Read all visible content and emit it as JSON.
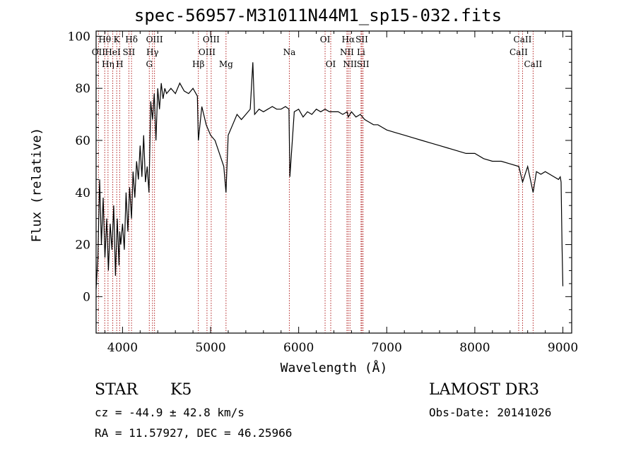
{
  "chart_data": {
    "type": "line",
    "title": "spec-56957-M31011N44M1_sp15-032.fits",
    "xlabel": "Wavelength (Å)",
    "ylabel": "Flux (relative)",
    "xlim": [
      3700,
      9100
    ],
    "ylim": [
      -14,
      102
    ],
    "xticks": [
      4000,
      5000,
      6000,
      7000,
      8000,
      9000
    ],
    "yticks": [
      0,
      20,
      40,
      60,
      80,
      100
    ],
    "spectrum": {
      "x": [
        3700,
        3720,
        3740,
        3760,
        3780,
        3800,
        3820,
        3840,
        3860,
        3880,
        3900,
        3920,
        3940,
        3960,
        3968,
        3980,
        4000,
        4020,
        4040,
        4060,
        4080,
        4102,
        4120,
        4140,
        4160,
        4180,
        4200,
        4220,
        4240,
        4260,
        4280,
        4300,
        4320,
        4340,
        4360,
        4380,
        4400,
        4420,
        4440,
        4460,
        4480,
        4500,
        4550,
        4600,
        4650,
        4700,
        4750,
        4800,
        4850,
        4861,
        4900,
        4950,
        5000,
        5050,
        5100,
        5150,
        5175,
        5200,
        5250,
        5300,
        5350,
        5400,
        5450,
        5480,
        5500,
        5550,
        5600,
        5650,
        5700,
        5750,
        5800,
        5850,
        5890,
        5900,
        5950,
        6000,
        6050,
        6100,
        6150,
        6200,
        6250,
        6300,
        6350,
        6400,
        6450,
        6500,
        6550,
        6563,
        6600,
        6650,
        6700,
        6750,
        6800,
        6850,
        6900,
        6950,
        7000,
        7100,
        7200,
        7300,
        7400,
        7500,
        7600,
        7700,
        7800,
        7900,
        8000,
        8100,
        8200,
        8300,
        8400,
        8500,
        8542,
        8600,
        8662,
        8700,
        8750,
        8800,
        8850,
        8900,
        8950,
        8970,
        8980,
        8990,
        9000
      ],
      "y": [
        3,
        15,
        45,
        20,
        38,
        15,
        30,
        10,
        28,
        18,
        35,
        8,
        30,
        12,
        25,
        20,
        28,
        18,
        40,
        25,
        42,
        30,
        48,
        38,
        52,
        45,
        58,
        46,
        62,
        44,
        50,
        40,
        75,
        68,
        78,
        60,
        80,
        72,
        82,
        76,
        80,
        78,
        80,
        78,
        82,
        79,
        78,
        80,
        77,
        60,
        73,
        66,
        62,
        60,
        55,
        50,
        40,
        62,
        66,
        70,
        68,
        70,
        72,
        90,
        70,
        72,
        71,
        72,
        73,
        72,
        72,
        73,
        72,
        46,
        71,
        72,
        69,
        71,
        70,
        72,
        71,
        72,
        71,
        71,
        71,
        70,
        71,
        69,
        71,
        69,
        70,
        68,
        67,
        66,
        66,
        65,
        64,
        63,
        62,
        61,
        60,
        59,
        58,
        57,
        56,
        55,
        55,
        53,
        52,
        52,
        51,
        50,
        44,
        50,
        40,
        48,
        47,
        48,
        47,
        46,
        45,
        46,
        44,
        20,
        4
      ]
    },
    "lines": [
      {
        "label": "OII",
        "wave": 3727,
        "row": 2
      },
      {
        "label": "Hθ",
        "wave": 3798,
        "row": 1
      },
      {
        "label": "Hη",
        "wave": 3835,
        "row": 3
      },
      {
        "label": "HeI",
        "wave": 3889,
        "row": 2
      },
      {
        "label": "K",
        "wave": 3934,
        "row": 1
      },
      {
        "label": "H",
        "wave": 3968,
        "row": 3
      },
      {
        "label": "SII",
        "wave": 4072,
        "row": 2
      },
      {
        "label": "Hδ",
        "wave": 4102,
        "row": 1
      },
      {
        "label": "G",
        "wave": 4304,
        "row": 3
      },
      {
        "label": "Hγ",
        "wave": 4340,
        "row": 2
      },
      {
        "label": "OIII",
        "wave": 4363,
        "row": 1
      },
      {
        "label": "Hβ",
        "wave": 4861,
        "row": 3
      },
      {
        "label": "OIII",
        "wave": 4959,
        "row": 2
      },
      {
        "label": "OIII",
        "wave": 5007,
        "row": 1
      },
      {
        "label": "Mg",
        "wave": 5175,
        "row": 3
      },
      {
        "label": "Na",
        "wave": 5894,
        "row": 2
      },
      {
        "label": "OI",
        "wave": 6300,
        "row": 1
      },
      {
        "label": "OI",
        "wave": 6364,
        "row": 3
      },
      {
        "label": "NII",
        "wave": 6548,
        "row": 2
      },
      {
        "label": "Hα",
        "wave": 6563,
        "row": 1
      },
      {
        "label": "NII",
        "wave": 6583,
        "row": 3
      },
      {
        "label": "Li",
        "wave": 6708,
        "row": 2
      },
      {
        "label": "SII",
        "wave": 6717,
        "row": 1
      },
      {
        "label": "SII",
        "wave": 6731,
        "row": 3
      },
      {
        "label": "CaII",
        "wave": 8498,
        "row": 2
      },
      {
        "label": "CaII",
        "wave": 8542,
        "row": 1
      },
      {
        "label": "CaII",
        "wave": 8662,
        "row": 3
      }
    ]
  },
  "info": {
    "class": "STAR",
    "subclass": "K5",
    "survey": "LAMOST DR3",
    "cz": "cz = -44.9 ± 42.8 km/s",
    "obs_date": "Obs-Date: 20141026",
    "coords": "RA =  11.57927, DEC =  46.25966"
  },
  "colors": {
    "line_markers": "#b22222",
    "spectrum": "#000000"
  }
}
